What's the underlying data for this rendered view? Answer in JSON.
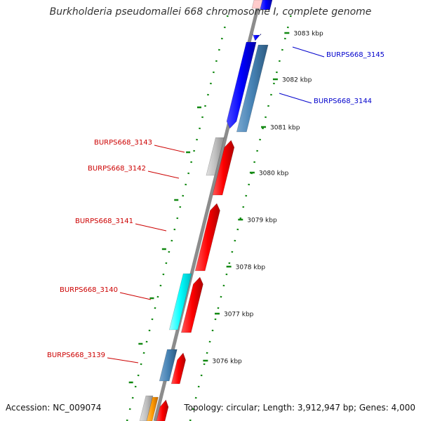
{
  "title": "Burkholderia pseudomallei 668 chromosome I, complete genome",
  "footer": {
    "accession": "Accession: NC_009074",
    "info": "Topology: circular; Length: 3,912,947 bp; Genes: 4,000"
  },
  "colors": {
    "backbone": "#8c8c8c",
    "tick": "#118811",
    "ruler_text": "#111111",
    "left_labels": "#cc0000",
    "right_labels": "#0000cc",
    "forward_cds": "#ff0000",
    "reverse_cds": "#0000ff",
    "steelblue": "#4682b4",
    "grey": "#c0c0c0",
    "cyan": "#00ffff",
    "orange": "#ff9900",
    "pink": "#ffcccc"
  },
  "ruler": [
    {
      "label": "3083 kbp"
    },
    {
      "label": "3082 kbp"
    },
    {
      "label": "3081 kbp"
    },
    {
      "label": "3080 kbp"
    },
    {
      "label": "3079 kbp"
    },
    {
      "label": "3078 kbp"
    },
    {
      "label": "3077 kbp"
    },
    {
      "label": "3076 kbp"
    }
  ],
  "genes": [
    {
      "name": "BURPS668_3145",
      "side": "right",
      "color": "reverse_cds"
    },
    {
      "name": "BURPS668_3144",
      "side": "right",
      "color": "steelblue"
    },
    {
      "name": "BURPS668_3143",
      "side": "left",
      "color": "grey"
    },
    {
      "name": "BURPS668_3142",
      "side": "left",
      "color": "forward_cds"
    },
    {
      "name": "BURPS668_3141",
      "side": "left",
      "color": "forward_cds"
    },
    {
      "name": "BURPS668_3140",
      "side": "left",
      "color": "cyan"
    },
    {
      "name": "BURPS668_3139",
      "side": "left",
      "color": "steelblue"
    }
  ]
}
